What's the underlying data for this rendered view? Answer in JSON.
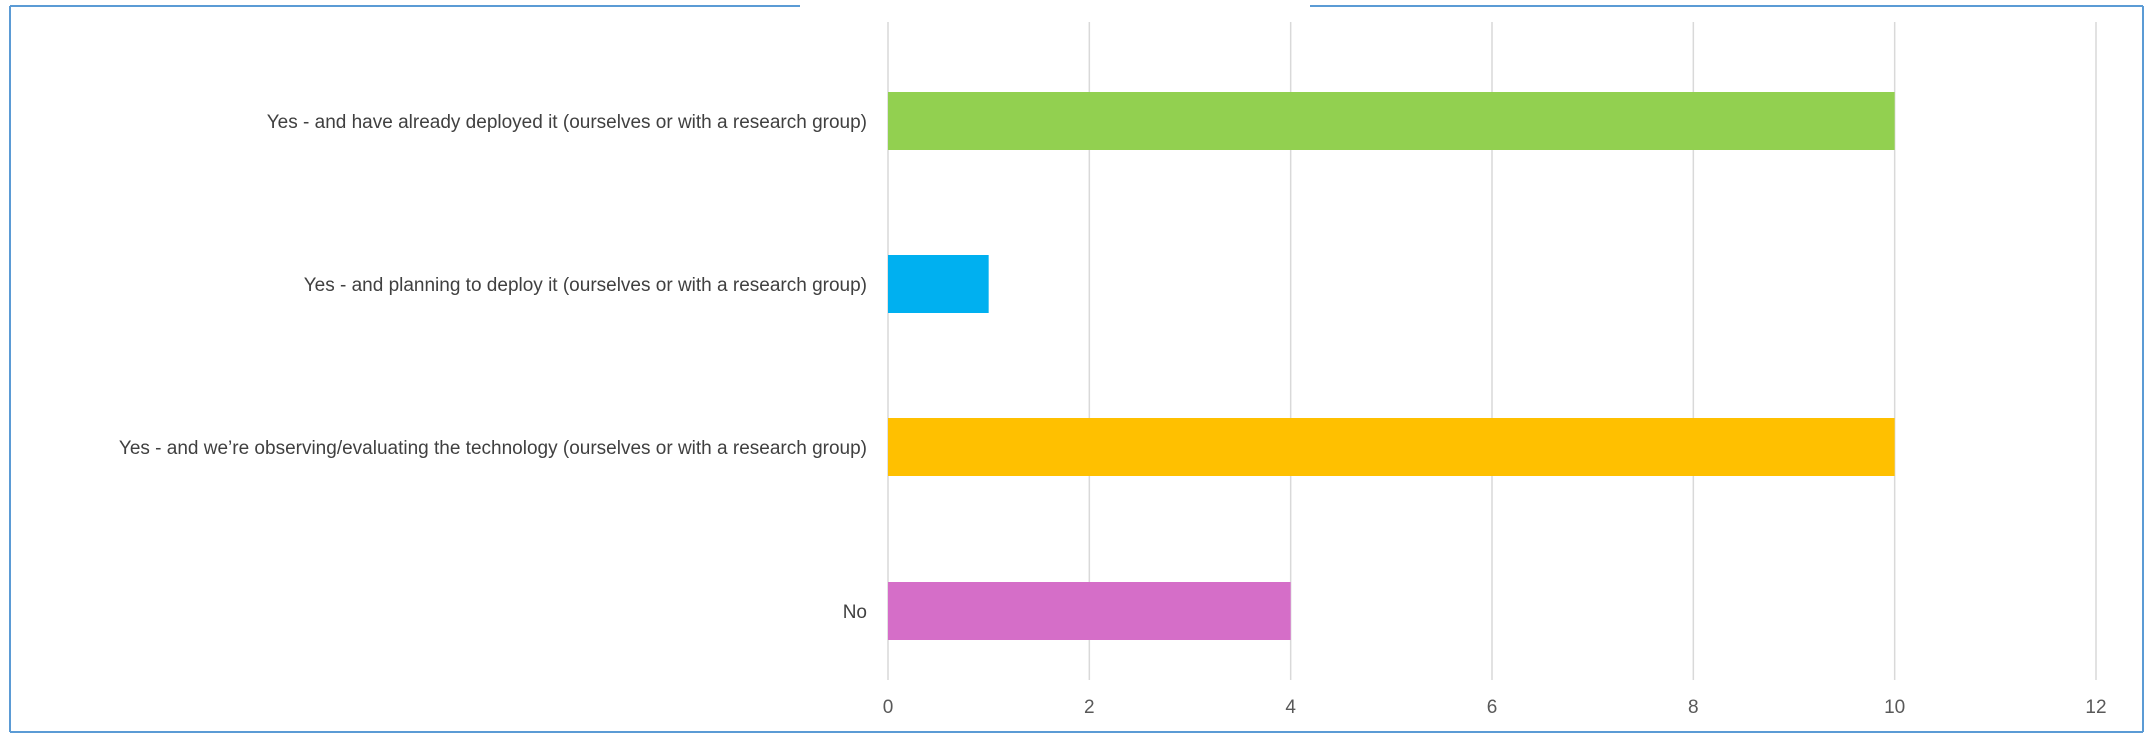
{
  "chart_data": {
    "type": "bar",
    "orientation": "horizontal",
    "categories": [
      "Yes - and have already deployed it (ourselves or with a research group)",
      "Yes - and planning to deploy it (ourselves or with a research group)",
      "Yes - and we’re observing/evaluating the technology (ourselves or with a research group)",
      "No"
    ],
    "values": [
      10,
      1,
      10,
      4
    ],
    "colors": [
      "#92d050",
      "#00b0f0",
      "#ffc000",
      "#d56ec8"
    ],
    "xlim": [
      0,
      12
    ],
    "xticks": [
      "0",
      "2",
      "4",
      "6",
      "8",
      "10",
      "12"
    ],
    "grid": true,
    "legend": "none",
    "title": "",
    "xlabel": "",
    "ylabel": ""
  },
  "frame": {
    "border_color": "#5b9bd5"
  }
}
